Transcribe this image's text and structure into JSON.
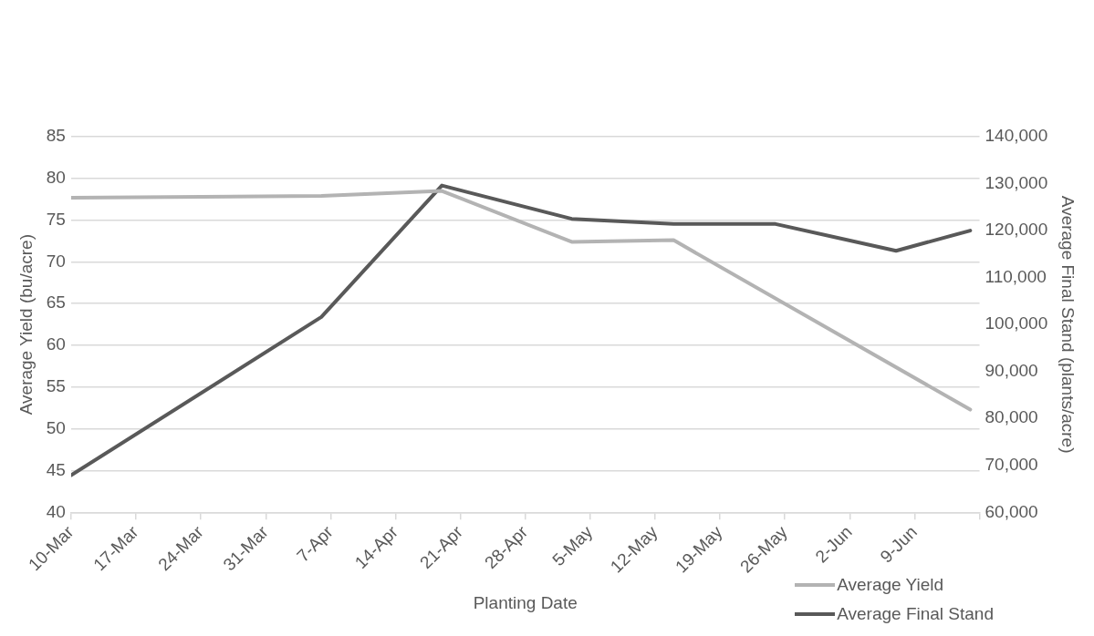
{
  "chart_data": {
    "type": "line",
    "xlabel": "Planting Date",
    "ylabel": "Average Yield (bu/acre)",
    "y2label": "Average Final Stand (plants/acre)",
    "xlim": [
      "--03-10",
      "--06-16"
    ],
    "xticks": [
      {
        "value": "--03-10",
        "label": "10-Mar"
      },
      {
        "value": "--03-17",
        "label": "17-Mar"
      },
      {
        "value": "--03-24",
        "label": "24-Mar"
      },
      {
        "value": "--03-31",
        "label": "31-Mar"
      },
      {
        "value": "--04-07",
        "label": "7-Apr"
      },
      {
        "value": "--04-14",
        "label": "14-Apr"
      },
      {
        "value": "--04-21",
        "label": "21-Apr"
      },
      {
        "value": "--04-28",
        "label": "28-Apr"
      },
      {
        "value": "--05-05",
        "label": "5-May"
      },
      {
        "value": "--05-12",
        "label": "12-May"
      },
      {
        "value": "--05-19",
        "label": "19-May"
      },
      {
        "value": "--05-26",
        "label": "26-May"
      },
      {
        "value": "--06-02",
        "label": "2-Jun"
      },
      {
        "value": "--06-09",
        "label": "9-Jun"
      },
      {
        "value": "--06-16",
        "label": null
      }
    ],
    "ylim": [
      40,
      85
    ],
    "yticks": [
      40,
      45,
      50,
      55,
      60,
      65,
      70,
      75,
      80,
      85
    ],
    "y2lim": [
      60000,
      140000
    ],
    "y2ticks": [
      {
        "value": 60000,
        "label": "60,000"
      },
      {
        "value": 70000,
        "label": "70,000"
      },
      {
        "value": 80000,
        "label": "80,000"
      },
      {
        "value": 90000,
        "label": "90,000"
      },
      {
        "value": 100000,
        "label": "100,000"
      },
      {
        "value": 110000,
        "label": "110,000"
      },
      {
        "value": 120000,
        "label": "120,000"
      },
      {
        "value": 130000,
        "label": "130,000"
      },
      {
        "value": 140000,
        "label": "140,000"
      }
    ],
    "grid": "y",
    "legend": "bottom right",
    "marker": "none",
    "line_style": "solid",
    "series": [
      {
        "name": "Average Yield",
        "color": "#b3b3b3",
        "x": [
          "--03-10",
          "--04-06",
          "--04-19",
          "--05-03",
          "--05-14",
          "--06-15"
        ],
        "values": [
          77.7,
          77.9,
          78.5,
          72.4,
          72.6,
          52.3
        ]
      },
      {
        "name": "Average Final Stand",
        "color": "#595959",
        "axis": "y2",
        "x": [
          "--03-10",
          "--04-06",
          "--04-19",
          "--05-03",
          "--05-14",
          "--05-25",
          "--06-07",
          "--06-15"
        ],
        "values": [
          67900,
          101600,
          129600,
          122500,
          121400,
          121400,
          115700,
          120000
        ]
      }
    ]
  }
}
